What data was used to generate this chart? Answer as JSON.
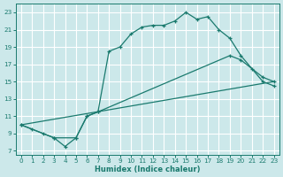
{
  "xlabel": "Humidex (Indice chaleur)",
  "bg_color": "#cce8ea",
  "grid_color": "#ffffff",
  "line_color": "#1a7a6e",
  "xlim": [
    -0.5,
    23.5
  ],
  "ylim": [
    6.5,
    24.0
  ],
  "xticks": [
    0,
    1,
    2,
    3,
    4,
    5,
    6,
    7,
    8,
    9,
    10,
    11,
    12,
    13,
    14,
    15,
    16,
    17,
    18,
    19,
    20,
    21,
    22,
    23
  ],
  "yticks": [
    7,
    9,
    11,
    13,
    15,
    17,
    19,
    21,
    23
  ],
  "line1_x": [
    0,
    1,
    2,
    3,
    4,
    5,
    6,
    7,
    8,
    9,
    10,
    11,
    12,
    13,
    14,
    15,
    16,
    17,
    18,
    19,
    20,
    21,
    22,
    23
  ],
  "line1_y": [
    10,
    9.5,
    9.0,
    8.5,
    7.5,
    8.5,
    11.0,
    11.5,
    18.5,
    19.0,
    20.5,
    21.3,
    21.5,
    21.5,
    22.0,
    23.0,
    22.2,
    22.5,
    21.0,
    20.0,
    18.0,
    16.5,
    15.0,
    14.5
  ],
  "line2_x": [
    0,
    3,
    5,
    6,
    7,
    19,
    20,
    22,
    23
  ],
  "line2_y": [
    10,
    8.5,
    8.5,
    11.0,
    11.5,
    18.0,
    17.5,
    15.5,
    15.0
  ],
  "line3_x": [
    0,
    23
  ],
  "line3_y": [
    10.0,
    15.0
  ]
}
